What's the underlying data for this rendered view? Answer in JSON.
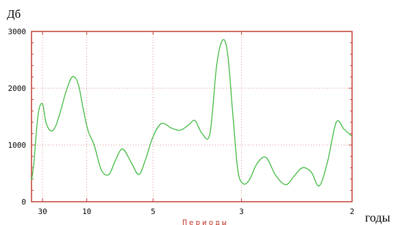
{
  "chart_data": {
    "type": "line",
    "ylabel": "Дб",
    "xlabel": "Периоды",
    "x_units_label": "годы",
    "ylim": [
      0,
      3000
    ],
    "yticks": [
      0,
      1000,
      2000,
      3000
    ],
    "ytick_labels": [
      "0",
      "1000",
      "2000",
      "3000"
    ],
    "x_scale": "reciprocal",
    "xlim": [
      60,
      2
    ],
    "xticks": [
      30,
      10,
      5,
      3,
      2
    ],
    "xtick_labels": [
      "30",
      "10",
      "5",
      "3",
      "2"
    ],
    "grid": true,
    "colors": {
      "line": "#3cb83c",
      "frame": "#c0392b",
      "grid": "#d98080"
    },
    "series": [
      {
        "x": [
          60,
          50,
          42,
          36,
          30,
          26,
          22,
          19,
          16.5,
          14.5,
          12.8,
          11.5,
          10.5,
          9.8,
          9,
          8.2,
          7.5,
          7,
          6.5,
          6,
          5.6,
          5.3,
          5,
          4.7,
          4.4,
          4.15,
          3.95,
          3.8,
          3.65,
          3.5,
          3.38,
          3.28,
          3.2,
          3.12,
          3.05,
          2.98,
          2.9,
          2.8,
          2.7,
          2.6,
          2.5,
          2.42,
          2.35,
          2.28,
          2.22,
          2.16,
          2.1,
          2.05,
          2
        ],
        "y": [
          380,
          650,
          1200,
          1620,
          1720,
          1400,
          1250,
          1320,
          1600,
          1950,
          2200,
          2080,
          1600,
          1250,
          1000,
          560,
          480,
          720,
          930,
          700,
          480,
          750,
          1150,
          1380,
          1300,
          1260,
          1350,
          1430,
          1200,
          1200,
          2400,
          2850,
          2600,
          1500,
          550,
          320,
          380,
          680,
          780,
          470,
          300,
          460,
          600,
          520,
          280,
          700,
          1400,
          1280,
          1150
        ]
      }
    ]
  }
}
